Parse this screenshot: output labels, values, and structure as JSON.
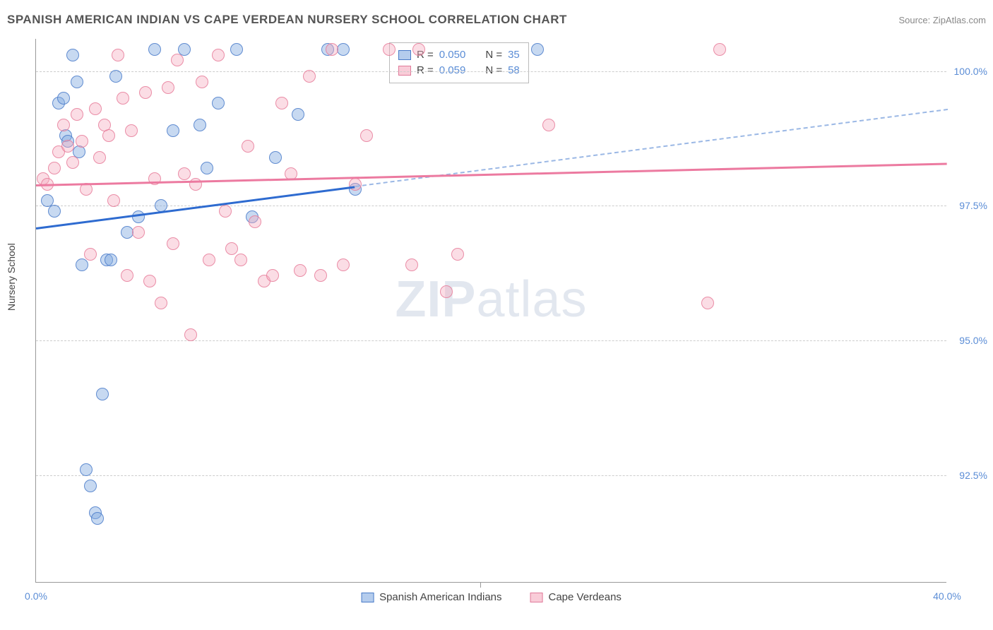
{
  "title": "SPANISH AMERICAN INDIAN VS CAPE VERDEAN NURSERY SCHOOL CORRELATION CHART",
  "source": "Source: ZipAtlas.com",
  "ylabel": "Nursery School",
  "watermark_zip": "ZIP",
  "watermark_atlas": "atlas",
  "colors": {
    "blue_fill": "rgba(130,170,225,0.45)",
    "blue_stroke": "#4a7bc8",
    "pink_fill": "rgba(245,170,190,0.4)",
    "pink_stroke": "#e07a9a",
    "tick_text": "#5b8dd6",
    "grid": "#cccccc",
    "axis": "#999999",
    "trend_blue": "#2e6bd0",
    "trend_pink": "#ec7aa0"
  },
  "chart": {
    "type": "scatter",
    "xlim": [
      0,
      40
    ],
    "ylim": [
      90.5,
      100.6
    ],
    "xticks": [
      0,
      40
    ],
    "xtick_labels": [
      "0.0%",
      "40.0%"
    ],
    "yticks": [
      92.5,
      95.0,
      97.5,
      100.0
    ],
    "ytick_labels": [
      "92.5%",
      "95.0%",
      "97.5%",
      "100.0%"
    ],
    "xtick_minor": [
      19.5
    ]
  },
  "series": [
    {
      "name": "Spanish American Indians",
      "class": "pt-blue",
      "R": "0.050",
      "N": "35",
      "trend": {
        "y_at_x0": 97.1,
        "y_at_x40": 99.3,
        "solid_until_x": 14
      },
      "points": [
        [
          0.5,
          97.6
        ],
        [
          0.8,
          97.4
        ],
        [
          1.0,
          99.4
        ],
        [
          1.2,
          99.5
        ],
        [
          1.3,
          98.8
        ],
        [
          1.4,
          98.7
        ],
        [
          1.6,
          100.3
        ],
        [
          1.8,
          99.8
        ],
        [
          1.9,
          98.5
        ],
        [
          2.0,
          96.4
        ],
        [
          2.2,
          92.6
        ],
        [
          2.4,
          92.3
        ],
        [
          2.6,
          91.8
        ],
        [
          2.7,
          91.7
        ],
        [
          2.9,
          94.0
        ],
        [
          3.1,
          96.5
        ],
        [
          3.3,
          96.5
        ],
        [
          3.5,
          99.9
        ],
        [
          4.0,
          97.0
        ],
        [
          4.5,
          97.3
        ],
        [
          5.2,
          100.4
        ],
        [
          5.5,
          97.5
        ],
        [
          6.0,
          98.9
        ],
        [
          6.5,
          100.4
        ],
        [
          7.2,
          99.0
        ],
        [
          7.5,
          98.2
        ],
        [
          8.0,
          99.4
        ],
        [
          8.8,
          100.4
        ],
        [
          9.5,
          97.3
        ],
        [
          10.5,
          98.4
        ],
        [
          11.5,
          99.2
        ],
        [
          12.8,
          100.4
        ],
        [
          13.5,
          100.4
        ],
        [
          14.0,
          97.8
        ],
        [
          22.0,
          100.4
        ]
      ]
    },
    {
      "name": "Cape Verdeans",
      "class": "pt-pink",
      "R": "0.059",
      "N": "58",
      "trend": {
        "y_at_x0": 97.9,
        "y_at_x40": 98.3,
        "solid_until_x": 40
      },
      "points": [
        [
          0.3,
          98.0
        ],
        [
          0.5,
          97.9
        ],
        [
          0.8,
          98.2
        ],
        [
          1.0,
          98.5
        ],
        [
          1.2,
          99.0
        ],
        [
          1.4,
          98.6
        ],
        [
          1.6,
          98.3
        ],
        [
          1.8,
          99.2
        ],
        [
          2.0,
          98.7
        ],
        [
          2.2,
          97.8
        ],
        [
          2.4,
          96.6
        ],
        [
          2.6,
          99.3
        ],
        [
          2.8,
          98.4
        ],
        [
          3.0,
          99.0
        ],
        [
          3.2,
          98.8
        ],
        [
          3.4,
          97.6
        ],
        [
          3.6,
          100.3
        ],
        [
          3.8,
          99.5
        ],
        [
          4.0,
          96.2
        ],
        [
          4.2,
          98.9
        ],
        [
          4.5,
          97.0
        ],
        [
          4.8,
          99.6
        ],
        [
          5.0,
          96.1
        ],
        [
          5.2,
          98.0
        ],
        [
          5.5,
          95.7
        ],
        [
          5.8,
          99.7
        ],
        [
          6.0,
          96.8
        ],
        [
          6.2,
          100.2
        ],
        [
          6.5,
          98.1
        ],
        [
          6.8,
          95.1
        ],
        [
          7.0,
          97.9
        ],
        [
          7.3,
          99.8
        ],
        [
          7.6,
          96.5
        ],
        [
          8.0,
          100.3
        ],
        [
          8.3,
          97.4
        ],
        [
          8.6,
          96.7
        ],
        [
          9.0,
          96.5
        ],
        [
          9.3,
          98.6
        ],
        [
          9.6,
          97.2
        ],
        [
          10.0,
          96.1
        ],
        [
          10.4,
          96.2
        ],
        [
          10.8,
          99.4
        ],
        [
          11.2,
          98.1
        ],
        [
          11.6,
          96.3
        ],
        [
          12.0,
          99.9
        ],
        [
          12.5,
          96.2
        ],
        [
          13.0,
          100.4
        ],
        [
          13.5,
          96.4
        ],
        [
          14.0,
          97.9
        ],
        [
          14.5,
          98.8
        ],
        [
          15.5,
          100.4
        ],
        [
          16.5,
          96.4
        ],
        [
          16.8,
          100.4
        ],
        [
          18.0,
          95.9
        ],
        [
          18.5,
          96.6
        ],
        [
          22.5,
          99.0
        ],
        [
          29.5,
          95.7
        ],
        [
          30.0,
          100.4
        ]
      ]
    }
  ],
  "stat_labels": {
    "R": "R =",
    "N": "N ="
  }
}
